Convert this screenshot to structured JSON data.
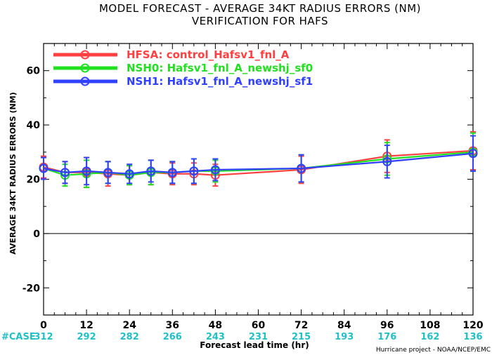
{
  "chart_data": {
    "type": "line",
    "title": "MODEL FORECAST - AVERAGE 34KT RADIUS ERRORS (NM)",
    "subtitle": "VERIFICATION FOR HAFS",
    "xlabel": "Forecast lead time (hr)",
    "ylabel": "AVERAGE 34KT RADIUS ERRORS (NM)",
    "xlim": [
      0,
      120
    ],
    "ylim": [
      -30,
      70
    ],
    "x_ticks": [
      0,
      12,
      24,
      36,
      48,
      60,
      72,
      84,
      96,
      108,
      120
    ],
    "y_ticks": [
      -20,
      0,
      20,
      40,
      60
    ],
    "zero_line": true,
    "legend_position": "top-left",
    "case_label": "#CASE",
    "cases": [
      312,
      292,
      282,
      266,
      243,
      231,
      215,
      193,
      176,
      162,
      136
    ],
    "credit": "Hurricane project - NOAA/NCEP/EMC",
    "series": [
      {
        "name": "HFSA: control_Hafsv1_fnl_A",
        "color": "#ff4040",
        "x": [
          0,
          6,
          12,
          18,
          24,
          30,
          36,
          42,
          48,
          72,
          96,
          120
        ],
        "y": [
          24.5,
          22.5,
          22.5,
          22.0,
          21.5,
          22.5,
          22.0,
          22.0,
          21.5,
          23.5,
          28.5,
          30.5
        ],
        "err": [
          4.0,
          4.0,
          5.5,
          4.5,
          3.5,
          4.5,
          4.0,
          4.0,
          4.0,
          5.0,
          6.0,
          7.0
        ]
      },
      {
        "name": "NSH0: Hafsv1_fnl_A_newshj_sf0",
        "color": "#20e020",
        "x": [
          0,
          6,
          12,
          18,
          24,
          30,
          36,
          42,
          48,
          72,
          96,
          120
        ],
        "y": [
          24.0,
          21.5,
          22.0,
          22.5,
          21.5,
          22.5,
          22.5,
          23.0,
          23.0,
          24.0,
          27.5,
          30.0
        ],
        "err": [
          4.0,
          4.0,
          5.0,
          4.0,
          3.5,
          4.5,
          4.0,
          4.5,
          4.0,
          5.0,
          6.0,
          7.0
        ]
      },
      {
        "name": "NSH1: Hafsv1_fnl_A_newshj_sf1",
        "color": "#3040ff",
        "x": [
          0,
          6,
          12,
          18,
          24,
          30,
          36,
          42,
          48,
          72,
          96,
          120
        ],
        "y": [
          24.0,
          22.5,
          23.0,
          22.5,
          22.0,
          23.0,
          22.5,
          23.0,
          23.5,
          24.0,
          26.5,
          29.5
        ],
        "err": [
          4.0,
          4.0,
          5.0,
          4.0,
          3.5,
          4.0,
          4.0,
          4.5,
          4.0,
          5.0,
          6.0,
          6.5
        ]
      }
    ]
  }
}
